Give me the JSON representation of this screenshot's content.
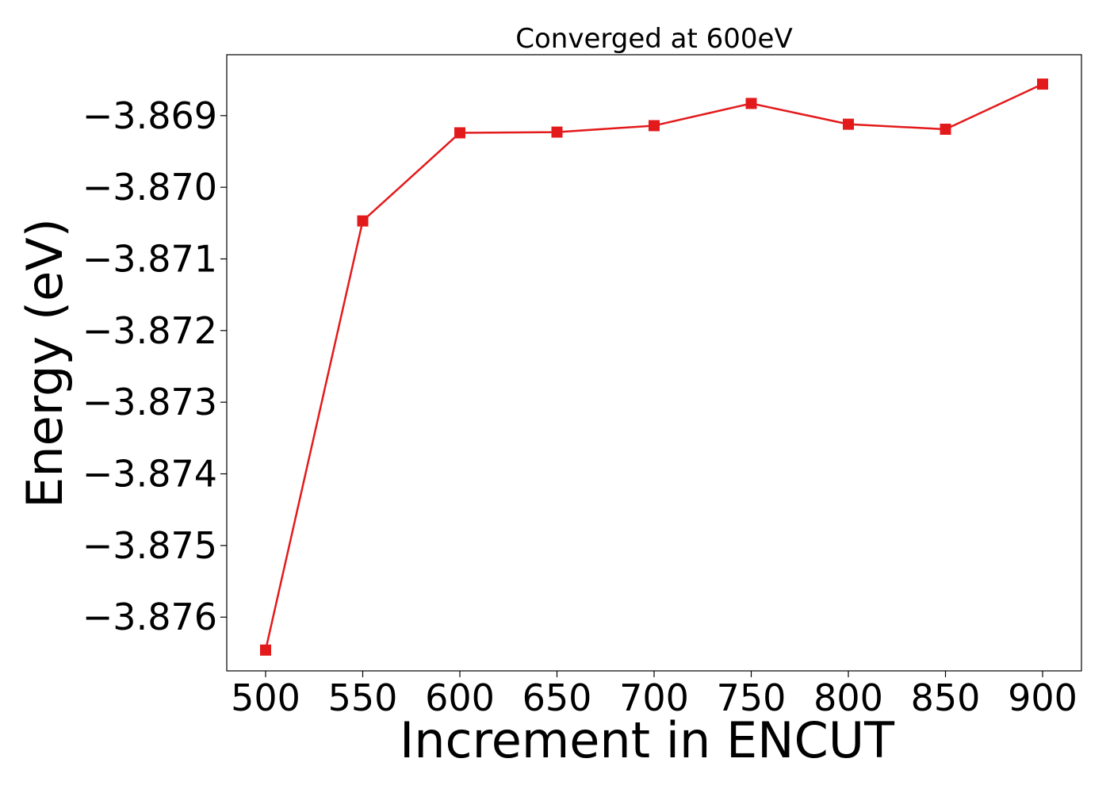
{
  "chart_data": {
    "type": "line",
    "title": "Converged at 600eV",
    "xlabel": "Increment in ENCUT",
    "ylabel": "Energy (eV)",
    "x": [
      500,
      550,
      600,
      650,
      700,
      750,
      800,
      850,
      900
    ],
    "x_ticks": [
      "500",
      "550",
      "600",
      "650",
      "700",
      "750",
      "800",
      "850",
      "900"
    ],
    "y_ticks": [
      "−3.876",
      "−3.875",
      "−3.874",
      "−3.873",
      "−3.872",
      "−3.871",
      "−3.870",
      "−3.869"
    ],
    "y_tick_values": [
      -3.876,
      -3.875,
      -3.874,
      -3.873,
      -3.872,
      -3.871,
      -3.87,
      -3.869
    ],
    "xlim": [
      480,
      920
    ],
    "ylim": [
      -3.87675,
      -3.86815
    ],
    "grid": false,
    "series": [
      {
        "values": [
          -3.87646,
          -3.87047,
          -3.86924,
          -3.86923,
          -3.86914,
          -3.86883,
          -3.86912,
          -3.86919,
          -3.86856
        ],
        "color": "#e31a1c",
        "marker": "square"
      }
    ]
  }
}
